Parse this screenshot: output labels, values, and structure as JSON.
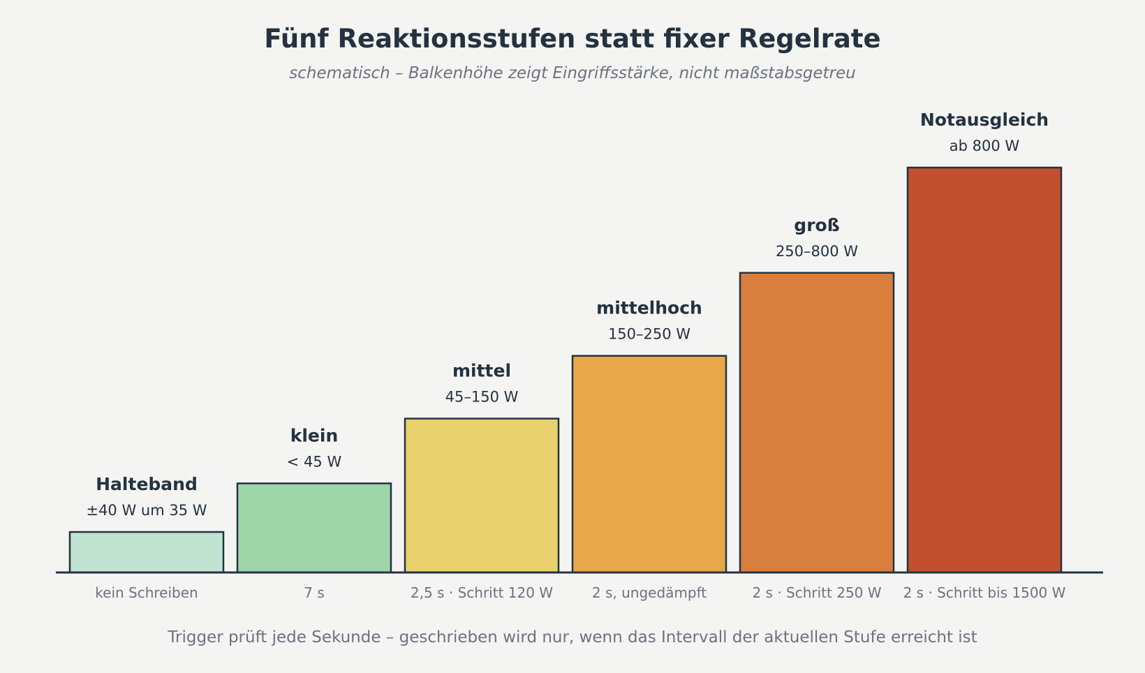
{
  "chart_data": {
    "type": "bar",
    "title": "Fünf Reaktionsstufen statt fixer Regelrate",
    "subtitle": "schematisch – Balkenhöhe zeigt Eingriffsstärke, nicht maßstabsgetreu",
    "footnote": "Trigger prüft jede Sekunde – geschrieben wird nur, wenn das Intervall der aktuellen Stufe erreicht ist",
    "xlabel": "",
    "ylabel": "",
    "ylim": [
      0,
      10
    ],
    "grid": false,
    "legend": "none",
    "categories": [
      "kein Schreiben",
      "7 s",
      "2,5 s · Schritt 120 W",
      "2 s, ungedämpft",
      "2 s · Schritt 250 W",
      "2 s · Schritt bis 1500 W"
    ],
    "bars": [
      {
        "name": "Halteband",
        "range": "±40 W um 35 W",
        "category": "kein Schreiben",
        "value": 1,
        "color": "#c0e3d2"
      },
      {
        "name": "klein",
        "range": "< 45 W",
        "category": "7 s",
        "value": 2.2,
        "color": "#9dd5a8"
      },
      {
        "name": "mittel",
        "range": "45–150 W",
        "category": "2,5 s · Schritt 120 W",
        "value": 3.8,
        "color": "#e8d06c"
      },
      {
        "name": "mittelhoch",
        "range": "150–250 W",
        "category": "2 s, ungedämpft",
        "value": 5.35,
        "color": "#e8a84a"
      },
      {
        "name": "groß",
        "range": "250–800 W",
        "category": "2 s · Schritt 250 W",
        "value": 7.4,
        "color": "#d97f3d"
      },
      {
        "name": "Notausgleich",
        "range": "ab 800 W",
        "category": "2 s · Schritt bis 1500 W",
        "value": 10,
        "color": "#c0502e"
      }
    ],
    "colors": {
      "background": "#f4f4f2",
      "outline": "#243240",
      "text_dark": "#243240",
      "text_muted": "#6b7280"
    }
  }
}
